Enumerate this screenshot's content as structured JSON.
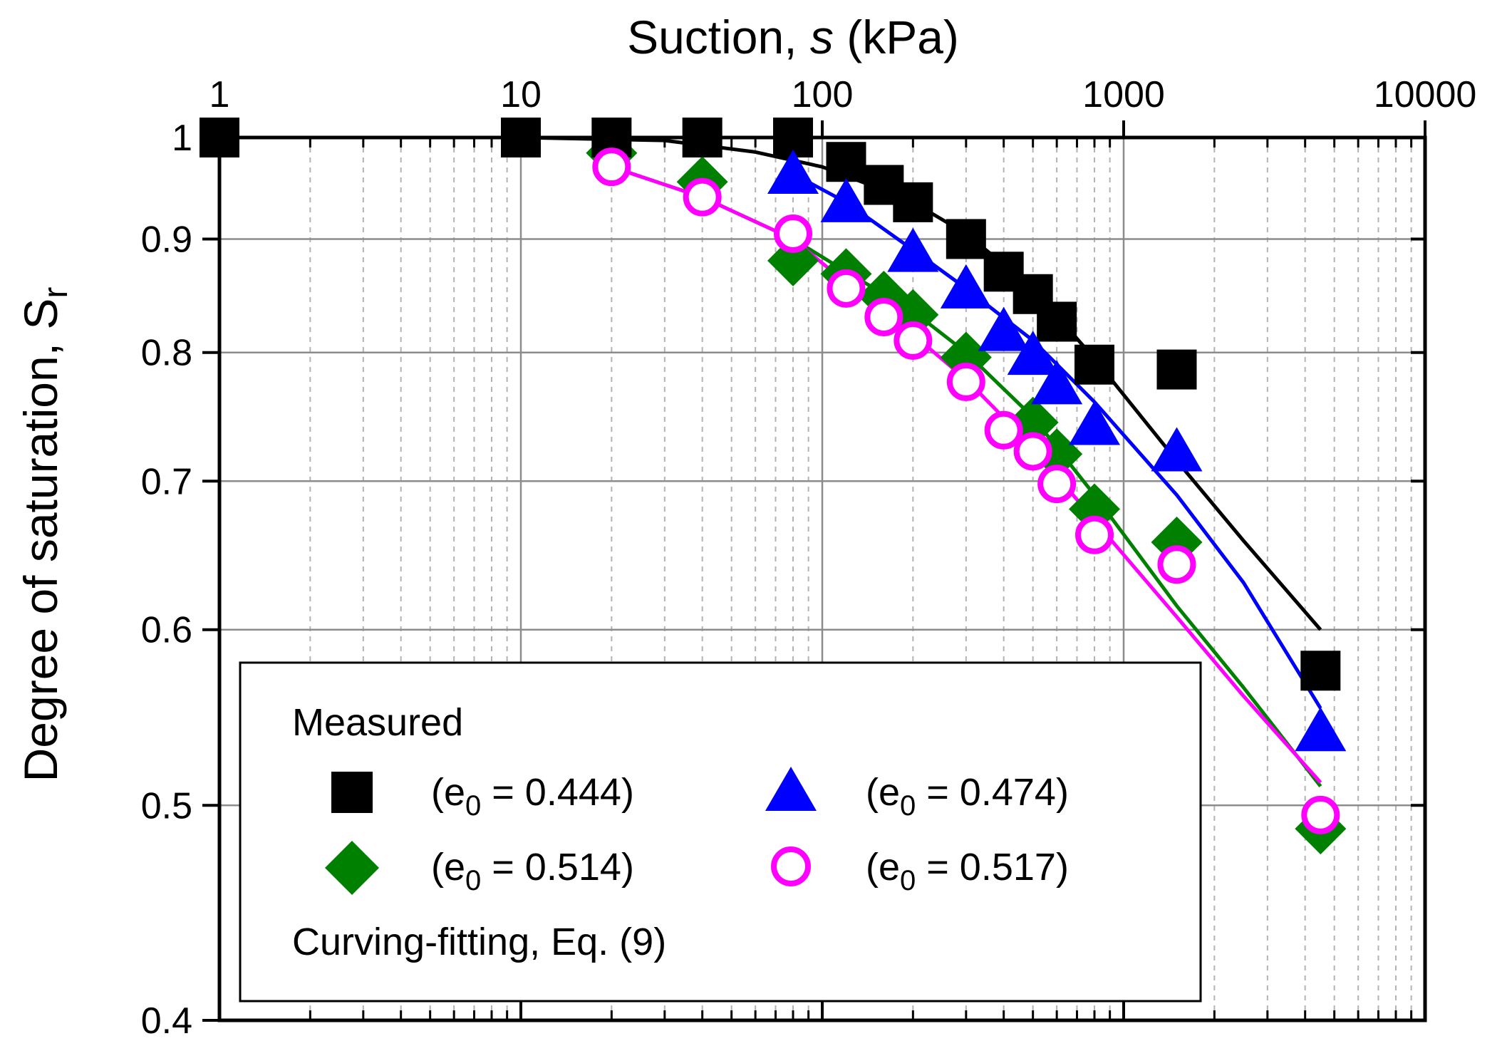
{
  "chart_data": {
    "type": "scatter",
    "title": "",
    "xlabel": "Suction, s (kPa)",
    "xlabel_parts": {
      "main": "Suction, ",
      "italic": "s",
      "unit": " (kPa)"
    },
    "ylabel": "Degree of saturation, Sr",
    "ylabel_parts": {
      "main": "Degree of saturation, ",
      "symbol": "S",
      "subscript": "r"
    },
    "x_scale": "log",
    "y_scale": "log",
    "x_axis_position": "top",
    "xlim": [
      1,
      10000
    ],
    "ylim": [
      0.4,
      1
    ],
    "x_ticks": [
      1,
      10,
      100,
      1000,
      10000
    ],
    "x_tick_labels": [
      "1",
      "10",
      "100",
      "1000",
      "10000"
    ],
    "y_ticks": [
      0.4,
      0.5,
      0.6,
      0.7,
      0.8,
      0.9,
      1
    ],
    "y_tick_labels": [
      "0.4",
      "0.5",
      "0.6",
      "0.7",
      "0.8",
      "0.9",
      "1"
    ],
    "grid": true,
    "legend": {
      "placement": "bottom-left",
      "heading": "Measured",
      "fit_label": "Curving-fitting, Eq. (9)"
    },
    "series": [
      {
        "label_prefix": "(e",
        "label_sub": "0",
        "label_value": " = 0.444)",
        "marker": "square",
        "color": "#000000",
        "points": [
          [
            1,
            1
          ],
          [
            10,
            1
          ],
          [
            20,
            1
          ],
          [
            40,
            1
          ],
          [
            80,
            1
          ],
          [
            120,
            0.975
          ],
          [
            160,
            0.952
          ],
          [
            200,
            0.935
          ],
          [
            300,
            0.9
          ],
          [
            400,
            0.87
          ],
          [
            500,
            0.85
          ],
          [
            600,
            0.826
          ],
          [
            800,
            0.79
          ],
          [
            1500,
            0.786
          ],
          [
            4500,
            0.575
          ]
        ],
        "fit": [
          [
            1,
            1
          ],
          [
            10,
            1
          ],
          [
            30,
            0.997
          ],
          [
            60,
            0.985
          ],
          [
            100,
            0.97
          ],
          [
            150,
            0.95
          ],
          [
            200,
            0.935
          ],
          [
            300,
            0.905
          ],
          [
            500,
            0.855
          ],
          [
            800,
            0.795
          ],
          [
            1500,
            0.715
          ],
          [
            2500,
            0.658
          ],
          [
            4500,
            0.6
          ]
        ]
      },
      {
        "label_prefix": "(e",
        "label_sub": "0",
        "label_value": " = 0.474)",
        "marker": "triangle",
        "color": "#0000ff",
        "points": [
          [
            80,
            0.963
          ],
          [
            120,
            0.935
          ],
          [
            200,
            0.888
          ],
          [
            300,
            0.855
          ],
          [
            400,
            0.818
          ],
          [
            500,
            0.798
          ],
          [
            600,
            0.774
          ],
          [
            800,
            0.742
          ],
          [
            1500,
            0.722
          ],
          [
            4500,
            0.54
          ]
        ],
        "fit": [
          [
            80,
            0.963
          ],
          [
            120,
            0.935
          ],
          [
            200,
            0.89
          ],
          [
            300,
            0.855
          ],
          [
            500,
            0.81
          ],
          [
            800,
            0.76
          ],
          [
            1500,
            0.69
          ],
          [
            2500,
            0.63
          ],
          [
            4500,
            0.553
          ]
        ]
      },
      {
        "label_prefix": "(e",
        "label_sub": "0",
        "label_value": " = 0.514)",
        "marker": "diamond",
        "color": "#008000",
        "points": [
          [
            20,
            0.984
          ],
          [
            40,
            0.955
          ],
          [
            80,
            0.88
          ],
          [
            120,
            0.868
          ],
          [
            160,
            0.848
          ],
          [
            200,
            0.832
          ],
          [
            300,
            0.796
          ],
          [
            500,
            0.744
          ],
          [
            600,
            0.72
          ],
          [
            800,
            0.68
          ],
          [
            1500,
            0.657
          ],
          [
            4500,
            0.488
          ]
        ],
        "fit": [
          [
            20,
            0.97
          ],
          [
            40,
            0.94
          ],
          [
            80,
            0.9
          ],
          [
            120,
            0.87
          ],
          [
            200,
            0.835
          ],
          [
            300,
            0.8
          ],
          [
            500,
            0.748
          ],
          [
            800,
            0.69
          ],
          [
            1500,
            0.615
          ],
          [
            2500,
            0.565
          ],
          [
            4500,
            0.51
          ]
        ]
      },
      {
        "label_prefix": "(e",
        "label_sub": "0",
        "label_value": " = 0.517)",
        "marker": "circle",
        "color": "#ff00ff",
        "points": [
          [
            20,
            0.97
          ],
          [
            40,
            0.94
          ],
          [
            80,
            0.905
          ],
          [
            120,
            0.855
          ],
          [
            160,
            0.83
          ],
          [
            200,
            0.81
          ],
          [
            300,
            0.776
          ],
          [
            400,
            0.738
          ],
          [
            500,
            0.722
          ],
          [
            600,
            0.698
          ],
          [
            800,
            0.662
          ],
          [
            1500,
            0.642
          ],
          [
            4500,
            0.495
          ]
        ],
        "fit": [
          [
            20,
            0.97
          ],
          [
            40,
            0.94
          ],
          [
            80,
            0.9
          ],
          [
            120,
            0.86
          ],
          [
            200,
            0.815
          ],
          [
            300,
            0.778
          ],
          [
            500,
            0.725
          ],
          [
            800,
            0.672
          ],
          [
            1500,
            0.608
          ],
          [
            2500,
            0.56
          ],
          [
            4500,
            0.512
          ]
        ]
      }
    ]
  }
}
